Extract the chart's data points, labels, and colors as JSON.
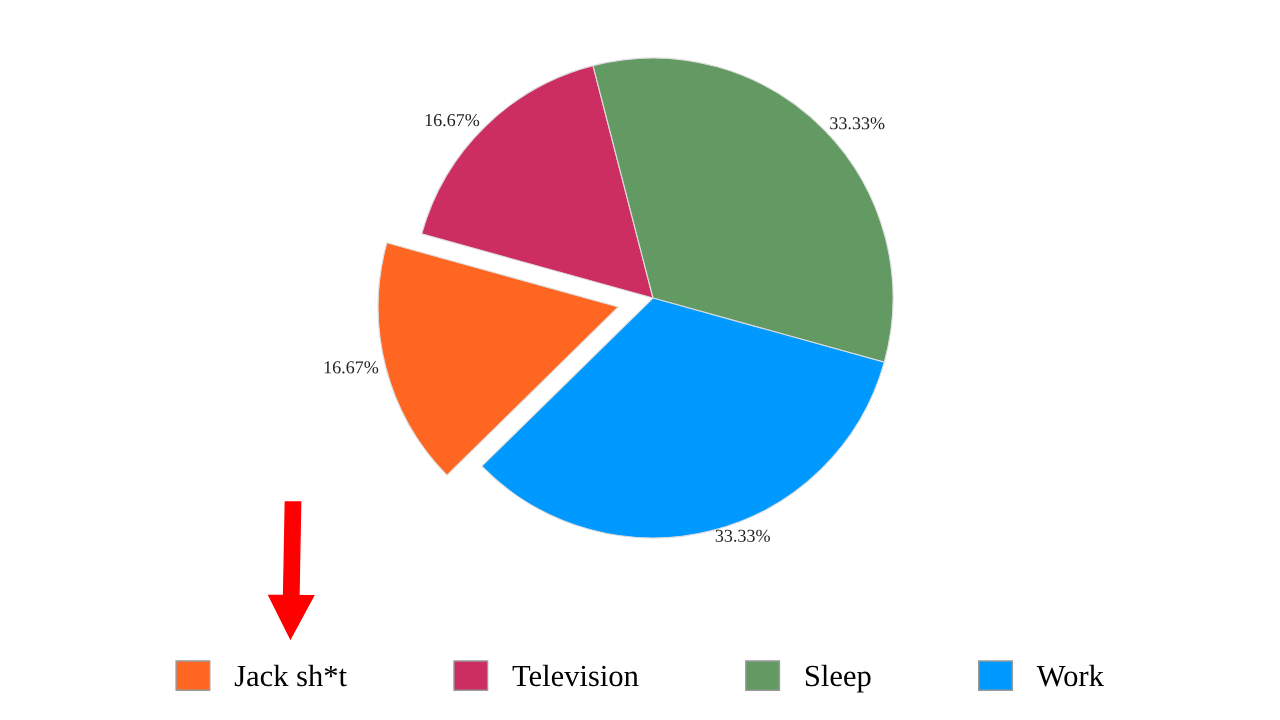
{
  "chart_data": {
    "type": "pie",
    "categories": [
      "Jack sh*t",
      "Television",
      "Sleep",
      "Work"
    ],
    "values": [
      16.67,
      16.67,
      33.33,
      33.33
    ],
    "colors": [
      "#ff6622",
      "#cc2e62",
      "#639a63",
      "#0099ff"
    ],
    "value_labels": [
      "16.67%",
      "16.67%",
      "33.33%",
      "33.33%"
    ],
    "legend": "bottom"
  }
}
